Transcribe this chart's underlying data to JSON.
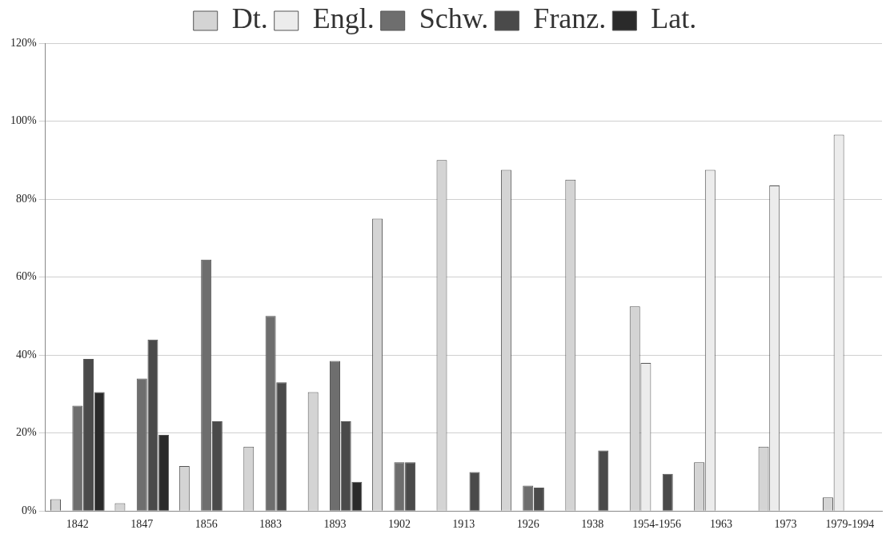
{
  "chart_data": {
    "type": "bar",
    "categories": [
      "1842",
      "1847",
      "1856",
      "1883",
      "1893",
      "1902",
      "1913",
      "1926",
      "1938",
      "1954-1956",
      "1963",
      "1973",
      "1979-1994"
    ],
    "series": [
      {
        "name": "Dt.",
        "color": "#d4d4d4",
        "values": [
          3,
          2,
          11.5,
          16.5,
          30.5,
          75,
          90,
          87.5,
          85,
          52.5,
          12.5,
          16.5,
          3.5
        ]
      },
      {
        "name": "Engl.",
        "color": "#ececec",
        "values": [
          null,
          null,
          null,
          null,
          null,
          null,
          null,
          null,
          null,
          38,
          87.5,
          83.5,
          96.5
        ]
      },
      {
        "name": "Schw.",
        "color": "#6e6e6e",
        "values": [
          27,
          34,
          64.5,
          50,
          38.5,
          12.5,
          null,
          6.5,
          null,
          null,
          null,
          null,
          null
        ]
      },
      {
        "name": "Franz.",
        "color": "#4a4a4a",
        "values": [
          39,
          44,
          23,
          33,
          23,
          12.5,
          10,
          6,
          15.5,
          9.5,
          null,
          null,
          null
        ]
      },
      {
        "name": "Lat.",
        "color": "#2a2a2a",
        "values": [
          30.5,
          19.5,
          null,
          null,
          7.5,
          null,
          null,
          null,
          null,
          null,
          null,
          null,
          null
        ]
      }
    ],
    "ylim": [
      0,
      120
    ],
    "yticks": [
      {
        "value": 0,
        "label": "0%"
      },
      {
        "value": 20,
        "label": "20%"
      },
      {
        "value": 40,
        "label": "40%"
      },
      {
        "value": 60,
        "label": "60%"
      },
      {
        "value": 80,
        "label": "80%"
      },
      {
        "value": 100,
        "label": "100%"
      },
      {
        "value": 120,
        "label": "120%"
      }
    ],
    "grid": "y",
    "legend": "top"
  }
}
